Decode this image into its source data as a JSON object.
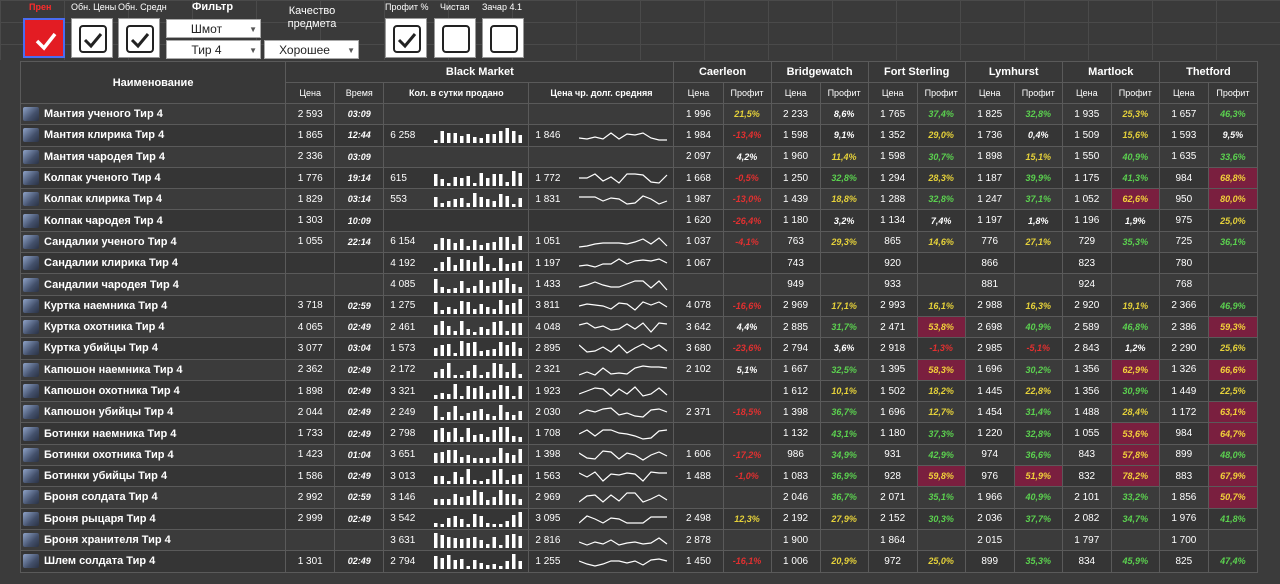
{
  "controls": {
    "labels": {
      "update_prices": "Обн. Цены",
      "update_avg": "Обн. Средн",
      "filter": "Фильтр",
      "quality": "Качество предмета",
      "profit_pct": "Профит %",
      "net": "Чистая",
      "enchant": "Зачар 4.1"
    },
    "filter_item": "Шмот",
    "filter_tier": "Тир 4",
    "quality_value": "Хорошее"
  },
  "table": {
    "name_header": "Наименование",
    "bm_header": "Black Market",
    "bm_cols": [
      "Цена",
      "Время",
      "Кол. в сутки продано",
      "Цена чр. долг. средняя"
    ],
    "cities": [
      "Caerleon",
      "Bridgewatch",
      "Fort Sterling",
      "Lymhurst",
      "Martlock",
      "Thetford"
    ],
    "city_cols": [
      "Цена",
      "Профит"
    ],
    "rows": [
      {
        "name": "Мантия ученого Тир 4",
        "bm_price": "2 593",
        "bm_time": "03:09",
        "sold": "",
        "avg": "",
        "c": [
          [
            "1 996",
            "21,5%",
            "y"
          ],
          [
            "2 233",
            "8,6%",
            "w"
          ],
          [
            "1 765",
            "37,4%",
            "g"
          ],
          [
            "1 825",
            "32,8%",
            "g"
          ],
          [
            "1 935",
            "25,3%",
            "y"
          ],
          [
            "1 657",
            "46,3%",
            "g"
          ]
        ]
      },
      {
        "name": "Мантия клирика Тир 4",
        "bm_price": "1 865",
        "bm_time": "12:44",
        "sold": "6 258",
        "avg": "1 846",
        "c": [
          [
            "1 984",
            "-13,4%",
            "r"
          ],
          [
            "1 598",
            "9,1%",
            "w"
          ],
          [
            "1 352",
            "29,0%",
            "y"
          ],
          [
            "1 736",
            "0,4%",
            "w"
          ],
          [
            "1 509",
            "15,6%",
            "y"
          ],
          [
            "1 593",
            "9,5%",
            "w"
          ]
        ]
      },
      {
        "name": "Мантия чародея Тир 4",
        "bm_price": "2 336",
        "bm_time": "03:09",
        "sold": "",
        "avg": "",
        "c": [
          [
            "2 097",
            "4,2%",
            "w"
          ],
          [
            "1 960",
            "11,4%",
            "y"
          ],
          [
            "1 598",
            "30,7%",
            "g"
          ],
          [
            "1 898",
            "15,1%",
            "y"
          ],
          [
            "1 550",
            "40,9%",
            "g"
          ],
          [
            "1 635",
            "33,6%",
            "g"
          ]
        ]
      },
      {
        "name": "Колпак ученого Тир 4",
        "bm_price": "1 776",
        "bm_time": "19:14",
        "sold": "615",
        "avg": "1 772",
        "c": [
          [
            "1 668",
            "-0,5%",
            "r"
          ],
          [
            "1 250",
            "32,8%",
            "g"
          ],
          [
            "1 294",
            "28,3%",
            "y"
          ],
          [
            "1 187",
            "39,9%",
            "g"
          ],
          [
            "1 175",
            "41,3%",
            "g"
          ],
          [
            "984",
            "68,8%",
            "hl"
          ]
        ]
      },
      {
        "name": "Колпак клирика Тир 4",
        "bm_price": "1 829",
        "bm_time": "03:14",
        "sold": "553",
        "avg": "1 831",
        "c": [
          [
            "1 987",
            "-13,0%",
            "r"
          ],
          [
            "1 439",
            "18,8%",
            "y"
          ],
          [
            "1 288",
            "32,8%",
            "g"
          ],
          [
            "1 247",
            "37,1%",
            "g"
          ],
          [
            "1 052",
            "62,6%",
            "hl"
          ],
          [
            "950",
            "80,0%",
            "hl"
          ]
        ]
      },
      {
        "name": "Колпак чародея Тир 4",
        "bm_price": "1 303",
        "bm_time": "10:09",
        "sold": "",
        "avg": "",
        "c": [
          [
            "1 620",
            "-26,4%",
            "r"
          ],
          [
            "1 180",
            "3,2%",
            "w"
          ],
          [
            "1 134",
            "7,4%",
            "w"
          ],
          [
            "1 197",
            "1,8%",
            "w"
          ],
          [
            "1 196",
            "1,9%",
            "w"
          ],
          [
            "975",
            "25,0%",
            "y"
          ]
        ]
      },
      {
        "name": "Сандалии ученого Тир 4",
        "bm_price": "1 055",
        "bm_time": "22:14",
        "sold": "6 154",
        "avg": "1 051",
        "c": [
          [
            "1 037",
            "-4,1%",
            "r"
          ],
          [
            "763",
            "29,3%",
            "y"
          ],
          [
            "865",
            "14,6%",
            "y"
          ],
          [
            "776",
            "27,1%",
            "y"
          ],
          [
            "729",
            "35,3%",
            "g"
          ],
          [
            "725",
            "36,1%",
            "g"
          ]
        ]
      },
      {
        "name": "Сандалии клирика Тир 4",
        "bm_price": "",
        "bm_time": "",
        "sold": "4 192",
        "avg": "1 197",
        "c": [
          [
            "1 067",
            "",
            ""
          ],
          [
            "743",
            "",
            ""
          ],
          [
            "920",
            "",
            ""
          ],
          [
            "866",
            "",
            ""
          ],
          [
            "823",
            "",
            ""
          ],
          [
            "780",
            "",
            ""
          ]
        ]
      },
      {
        "name": "Сандалии чародея Тир 4",
        "bm_price": "",
        "bm_time": "",
        "sold": "4 085",
        "avg": "1 433",
        "c": [
          [
            "",
            "",
            ""
          ],
          [
            "949",
            "",
            ""
          ],
          [
            "933",
            "",
            ""
          ],
          [
            "881",
            "",
            ""
          ],
          [
            "924",
            "",
            ""
          ],
          [
            "768",
            "",
            ""
          ]
        ]
      },
      {
        "name": "Куртка наемника Тир 4",
        "bm_price": "3 718",
        "bm_time": "02:59",
        "sold": "1 275",
        "avg": "3 811",
        "c": [
          [
            "4 078",
            "-16,6%",
            "r"
          ],
          [
            "2 969",
            "17,1%",
            "y"
          ],
          [
            "2 993",
            "16,1%",
            "y"
          ],
          [
            "2 988",
            "16,3%",
            "y"
          ],
          [
            "2 920",
            "19,1%",
            "y"
          ],
          [
            "2 366",
            "46,9%",
            "g"
          ]
        ]
      },
      {
        "name": "Куртка охотника Тир 4",
        "bm_price": "4 065",
        "bm_time": "02:49",
        "sold": "2 461",
        "avg": "4 048",
        "c": [
          [
            "3 642",
            "4,4%",
            "w"
          ],
          [
            "2 885",
            "31,7%",
            "g"
          ],
          [
            "2 471",
            "53,8%",
            "hl"
          ],
          [
            "2 698",
            "40,9%",
            "g"
          ],
          [
            "2 589",
            "46,8%",
            "g"
          ],
          [
            "2 386",
            "59,3%",
            "hl"
          ]
        ]
      },
      {
        "name": "Куртка убийцы Тир 4",
        "bm_price": "3 077",
        "bm_time": "03:04",
        "sold": "1 573",
        "avg": "2 895",
        "c": [
          [
            "3 680",
            "-23,6%",
            "r"
          ],
          [
            "2 794",
            "3,6%",
            "w"
          ],
          [
            "2 918",
            "-1,3%",
            "r"
          ],
          [
            "2 985",
            "-5,1%",
            "r"
          ],
          [
            "2 843",
            "1,2%",
            "w"
          ],
          [
            "2 290",
            "25,6%",
            "y"
          ]
        ]
      },
      {
        "name": "Капюшон наемника Тир 4",
        "bm_price": "2 362",
        "bm_time": "02:49",
        "sold": "2 172",
        "avg": "2 321",
        "c": [
          [
            "2 102",
            "5,1%",
            "w"
          ],
          [
            "1 667",
            "32,5%",
            "g"
          ],
          [
            "1 395",
            "58,3%",
            "hl"
          ],
          [
            "1 696",
            "30,2%",
            "g"
          ],
          [
            "1 356",
            "62,9%",
            "hl"
          ],
          [
            "1 326",
            "66,6%",
            "hl"
          ]
        ]
      },
      {
        "name": "Капюшон охотника Тир 4",
        "bm_price": "1 898",
        "bm_time": "02:49",
        "sold": "3 321",
        "avg": "1 923",
        "c": [
          [
            "",
            "",
            ""
          ],
          [
            "1 612",
            "10,1%",
            "y"
          ],
          [
            "1 502",
            "18,2%",
            "y"
          ],
          [
            "1 445",
            "22,8%",
            "y"
          ],
          [
            "1 356",
            "30,9%",
            "g"
          ],
          [
            "1 449",
            "22,5%",
            "y"
          ]
        ]
      },
      {
        "name": "Капюшон убийцы Тир 4",
        "bm_price": "2 044",
        "bm_time": "02:49",
        "sold": "2 249",
        "avg": "2 030",
        "c": [
          [
            "2 371",
            "-18,5%",
            "r"
          ],
          [
            "1 398",
            "36,7%",
            "g"
          ],
          [
            "1 696",
            "12,7%",
            "y"
          ],
          [
            "1 454",
            "31,4%",
            "g"
          ],
          [
            "1 488",
            "28,4%",
            "y"
          ],
          [
            "1 172",
            "63,1%",
            "hl"
          ]
        ]
      },
      {
        "name": "Ботинки наемника Тир 4",
        "bm_price": "1 733",
        "bm_time": "02:49",
        "sold": "2 798",
        "avg": "1 708",
        "c": [
          [
            "",
            "",
            ""
          ],
          [
            "1 132",
            "43,1%",
            "g"
          ],
          [
            "1 180",
            "37,3%",
            "g"
          ],
          [
            "1 220",
            "32,8%",
            "g"
          ],
          [
            "1 055",
            "53,6%",
            "hl"
          ],
          [
            "984",
            "64,7%",
            "hl"
          ]
        ]
      },
      {
        "name": "Ботинки охотника Тир 4",
        "bm_price": "1 423",
        "bm_time": "01:04",
        "sold": "3 651",
        "avg": "1 398",
        "c": [
          [
            "1 606",
            "-17,2%",
            "r"
          ],
          [
            "986",
            "34,9%",
            "g"
          ],
          [
            "931",
            "42,9%",
            "g"
          ],
          [
            "974",
            "36,6%",
            "g"
          ],
          [
            "843",
            "57,8%",
            "hl"
          ],
          [
            "899",
            "48,0%",
            "g"
          ]
        ]
      },
      {
        "name": "Ботинки убийцы Тир 4",
        "bm_price": "1 586",
        "bm_time": "02:49",
        "sold": "3 013",
        "avg": "1 563",
        "c": [
          [
            "1 488",
            "-1,0%",
            "r"
          ],
          [
            "1 083",
            "36,9%",
            "g"
          ],
          [
            "928",
            "59,8%",
            "hl"
          ],
          [
            "976",
            "51,9%",
            "hl"
          ],
          [
            "832",
            "78,2%",
            "hl"
          ],
          [
            "883",
            "67,9%",
            "hl"
          ]
        ]
      },
      {
        "name": "Броня солдата Тир 4",
        "bm_price": "2 992",
        "bm_time": "02:59",
        "sold": "3 146",
        "avg": "2 969",
        "c": [
          [
            "",
            "",
            ""
          ],
          [
            "2 046",
            "36,7%",
            "g"
          ],
          [
            "2 071",
            "35,1%",
            "g"
          ],
          [
            "1 966",
            "40,9%",
            "g"
          ],
          [
            "2 101",
            "33,2%",
            "g"
          ],
          [
            "1 856",
            "50,7%",
            "hl"
          ]
        ]
      },
      {
        "name": "Броня рыцаря Тир 4",
        "bm_price": "2 999",
        "bm_time": "02:49",
        "sold": "3 542",
        "avg": "3 095",
        "c": [
          [
            "2 498",
            "12,3%",
            "y"
          ],
          [
            "2 192",
            "27,9%",
            "y"
          ],
          [
            "2 152",
            "30,3%",
            "g"
          ],
          [
            "2 036",
            "37,7%",
            "g"
          ],
          [
            "2 082",
            "34,7%",
            "g"
          ],
          [
            "1 976",
            "41,8%",
            "g"
          ]
        ]
      },
      {
        "name": "Броня хранителя Тир 4",
        "bm_price": "",
        "bm_time": "",
        "sold": "3 631",
        "avg": "2 816",
        "c": [
          [
            "2 878",
            "",
            ""
          ],
          [
            "1 900",
            "",
            ""
          ],
          [
            "1 864",
            "",
            ""
          ],
          [
            "2 015",
            "",
            ""
          ],
          [
            "1 797",
            "",
            ""
          ],
          [
            "1 700",
            "",
            ""
          ]
        ]
      },
      {
        "name": "Шлем солдата Тир 4",
        "bm_price": "1 301",
        "bm_time": "02:49",
        "sold": "2 794",
        "avg": "1 255",
        "c": [
          [
            "1 450",
            "-16,1%",
            "r"
          ],
          [
            "1 006",
            "20,9%",
            "y"
          ],
          [
            "972",
            "25,0%",
            "y"
          ],
          [
            "899",
            "35,3%",
            "g"
          ],
          [
            "834",
            "45,9%",
            "g"
          ],
          [
            "825",
            "47,4%",
            "g"
          ]
        ]
      }
    ]
  }
}
